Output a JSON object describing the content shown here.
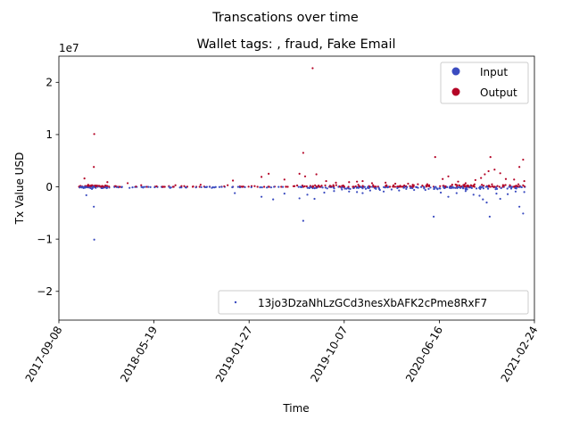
{
  "chart_data": {
    "type": "scatter",
    "suptitle": "Transcations over time",
    "title": "Wallet tags: , fraud, Fake Email",
    "xlabel": "Time",
    "ylabel": "Tx Value USD",
    "y_offset_text": "1e7",
    "y_scale_factor": 10000000,
    "xlim": [
      "2017-09-08",
      "2021-02-24"
    ],
    "ylim": [
      -25500000,
      25000000
    ],
    "x_ticks": [
      "2017-09-08",
      "2018-05-19",
      "2019-01-27",
      "2019-10-07",
      "2020-06-16",
      "2021-02-24"
    ],
    "y_ticks": [
      -20000000,
      -10000000,
      0,
      10000000,
      20000000
    ],
    "y_tick_labels": [
      "−2",
      "−1",
      "0",
      "1",
      "2"
    ],
    "grid": false,
    "colors": {
      "input": "#3b4cc0",
      "output": "#b40426"
    },
    "legend_upper": {
      "placement": "upper-right",
      "entries": [
        {
          "label": "Input",
          "color": "#3b4cc0"
        },
        {
          "label": "Output",
          "color": "#b40426"
        }
      ]
    },
    "legend_lower": {
      "placement": "lower-right",
      "entries": [
        {
          "label": "13jo3DzaNhLzGCd3nesXbAFK2cPme8RxF7",
          "color": "#3b4cc0"
        }
      ]
    },
    "series": [
      {
        "name": "Input",
        "color": "#3b4cc0",
        "points": [
          [
            "2017-11-10",
            -100000
          ],
          [
            "2017-11-20",
            -1600000
          ],
          [
            "2017-12-01",
            -250000
          ],
          [
            "2017-12-05",
            -400000
          ],
          [
            "2017-12-10",
            -3800000
          ],
          [
            "2017-12-11",
            -10100000
          ],
          [
            "2017-12-15",
            -200000
          ],
          [
            "2018-01-20",
            -150000
          ],
          [
            "2018-03-15",
            -200000
          ],
          [
            "2018-04-20",
            -150000
          ],
          [
            "2018-07-01",
            -200000
          ],
          [
            "2018-10-20",
            -200000
          ],
          [
            "2018-12-20",
            -1200000
          ],
          [
            "2019-03-01",
            -1900000
          ],
          [
            "2019-04-01",
            -2400000
          ],
          [
            "2019-05-01",
            -1300000
          ],
          [
            "2019-06-10",
            -2200000
          ],
          [
            "2019-06-20",
            -6500000
          ],
          [
            "2019-07-01",
            -1500000
          ],
          [
            "2019-07-20",
            -2300000
          ],
          [
            "2019-08-15",
            -1100000
          ],
          [
            "2019-09-10",
            -800000
          ],
          [
            "2019-10-01",
            -500000
          ],
          [
            "2019-10-20",
            -900000
          ],
          [
            "2019-11-10",
            -1000000
          ],
          [
            "2019-11-25",
            -1200000
          ],
          [
            "2019-12-15",
            -700000
          ],
          [
            "2020-01-10",
            -600000
          ],
          [
            "2020-01-20",
            -900000
          ],
          [
            "2020-02-10",
            -500000
          ],
          [
            "2020-03-01",
            -700000
          ],
          [
            "2020-03-20",
            -400000
          ],
          [
            "2020-04-10",
            -600000
          ],
          [
            "2020-05-10",
            -600000
          ],
          [
            "2020-06-01",
            -5700000
          ],
          [
            "2020-06-20",
            -1100000
          ],
          [
            "2020-07-10",
            -1900000
          ],
          [
            "2020-08-01",
            -1200000
          ],
          [
            "2020-08-25",
            -800000
          ],
          [
            "2020-09-15",
            -1500000
          ],
          [
            "2020-10-01",
            -1700000
          ],
          [
            "2020-10-10",
            -2400000
          ],
          [
            "2020-10-20",
            -3000000
          ],
          [
            "2020-10-28",
            -5700000
          ],
          [
            "2020-11-15",
            -1300000
          ],
          [
            "2020-11-25",
            -2300000
          ],
          [
            "2020-12-15",
            -1400000
          ],
          [
            "2021-01-05",
            -900000
          ],
          [
            "2021-01-15",
            -3800000
          ],
          [
            "2021-01-25",
            -5100000
          ],
          [
            "2021-01-28",
            -1000000
          ]
        ]
      },
      {
        "name": "Output",
        "color": "#b40426",
        "points": [
          [
            "2017-11-15",
            1600000
          ],
          [
            "2017-11-25",
            400000
          ],
          [
            "2017-12-05",
            300000
          ],
          [
            "2017-12-10",
            3800000
          ],
          [
            "2017-12-11",
            10100000
          ],
          [
            "2017-12-20",
            200000
          ],
          [
            "2018-01-15",
            900000
          ],
          [
            "2018-03-10",
            700000
          ],
          [
            "2018-04-15",
            300000
          ],
          [
            "2018-07-15",
            300000
          ],
          [
            "2018-09-20",
            400000
          ],
          [
            "2018-12-01",
            300000
          ],
          [
            "2018-12-15",
            1200000
          ],
          [
            "2019-03-01",
            1900000
          ],
          [
            "2019-03-20",
            2500000
          ],
          [
            "2019-05-01",
            1400000
          ],
          [
            "2019-06-10",
            2500000
          ],
          [
            "2019-06-20",
            6500000
          ],
          [
            "2019-06-25",
            2000000
          ],
          [
            "2019-07-15",
            22700000
          ],
          [
            "2019-07-25",
            2400000
          ],
          [
            "2019-08-20",
            1100000
          ],
          [
            "2019-09-15",
            800000
          ],
          [
            "2019-10-20",
            900000
          ],
          [
            "2019-11-10",
            1000000
          ],
          [
            "2019-11-25",
            1100000
          ],
          [
            "2019-12-20",
            700000
          ],
          [
            "2020-01-25",
            800000
          ],
          [
            "2020-02-20",
            600000
          ],
          [
            "2020-03-25",
            600000
          ],
          [
            "2020-04-20",
            500000
          ],
          [
            "2020-05-15",
            500000
          ],
          [
            "2020-06-05",
            5700000
          ],
          [
            "2020-06-25",
            1500000
          ],
          [
            "2020-07-10",
            2000000
          ],
          [
            "2020-08-05",
            1000000
          ],
          [
            "2020-08-25",
            700000
          ],
          [
            "2020-09-20",
            1300000
          ],
          [
            "2020-10-05",
            1700000
          ],
          [
            "2020-10-15",
            2400000
          ],
          [
            "2020-10-25",
            3000000
          ],
          [
            "2020-10-30",
            5700000
          ],
          [
            "2020-11-10",
            3300000
          ],
          [
            "2020-11-25",
            2600000
          ],
          [
            "2020-12-10",
            1500000
          ],
          [
            "2021-01-01",
            1400000
          ],
          [
            "2021-01-15",
            3800000
          ],
          [
            "2021-01-25",
            5200000
          ],
          [
            "2021-01-28",
            1100000
          ]
        ]
      }
    ]
  }
}
